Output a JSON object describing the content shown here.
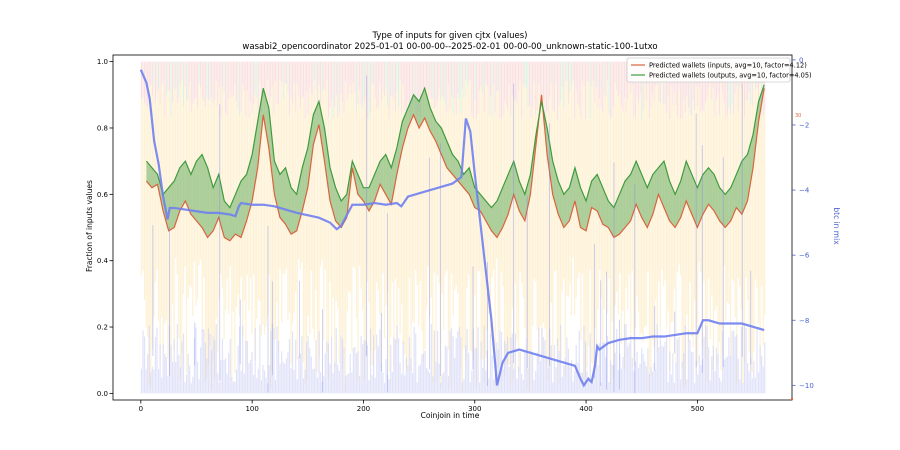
{
  "chart_data": {
    "type": "line",
    "title": "Type of inputs for given cjtx (values)",
    "subtitle": "wasabi2_opencoordinator 2025-01-01 00-00-00--2025-02-01 00-00-00_unknown-static-100-1utxo",
    "xlabel": "Coinjoin in time",
    "ylabel": "Fraction of inputs values",
    "y2label": "btc in mix",
    "xlim": [
      -25,
      585
    ],
    "ylim": [
      -0.02,
      1.02
    ],
    "y2lim": [
      -10.45,
      0.15
    ],
    "xticks": [
      0,
      100,
      200,
      300,
      400,
      500
    ],
    "yticks": [
      0.0,
      0.2,
      0.4,
      0.6,
      0.8,
      1.0
    ],
    "y2ticks": [
      0,
      -2,
      -4,
      -6,
      -8,
      -10
    ],
    "y2_extra_tick": {
      "value": -1.7,
      "label": "30"
    },
    "grid": false,
    "legend_position": "top-right",
    "background_stripes": {
      "x_start": 0,
      "x_end": 560,
      "top_colors": [
        "#f6c9c9",
        "#c9e6c9"
      ],
      "body_color": "#fde8b8",
      "low_color": "#c8ccf4"
    },
    "series": [
      {
        "name": "Predicted wallets (inputs, avg=10, factor=4.12)",
        "color": "#d9643f",
        "x": [
          5,
          10,
          15,
          20,
          25,
          30,
          35,
          40,
          45,
          50,
          55,
          60,
          65,
          70,
          75,
          80,
          85,
          90,
          95,
          100,
          105,
          110,
          115,
          120,
          125,
          130,
          135,
          140,
          145,
          150,
          155,
          160,
          165,
          170,
          175,
          180,
          185,
          190,
          195,
          200,
          205,
          210,
          215,
          220,
          225,
          230,
          235,
          240,
          245,
          250,
          255,
          260,
          265,
          270,
          275,
          280,
          285,
          290,
          295,
          300,
          305,
          310,
          315,
          320,
          325,
          330,
          335,
          340,
          345,
          350,
          355,
          360,
          365,
          370,
          375,
          380,
          385,
          390,
          395,
          400,
          405,
          410,
          415,
          420,
          425,
          430,
          435,
          440,
          445,
          450,
          455,
          460,
          465,
          470,
          475,
          480,
          485,
          490,
          495,
          500,
          505,
          510,
          515,
          520,
          525,
          530,
          535,
          540,
          545,
          550,
          555,
          560
        ],
        "y": [
          0.64,
          0.62,
          0.63,
          0.55,
          0.49,
          0.5,
          0.55,
          0.58,
          0.54,
          0.52,
          0.5,
          0.47,
          0.49,
          0.53,
          0.47,
          0.46,
          0.48,
          0.47,
          0.52,
          0.58,
          0.68,
          0.84,
          0.74,
          0.6,
          0.53,
          0.51,
          0.48,
          0.49,
          0.55,
          0.62,
          0.75,
          0.81,
          0.7,
          0.58,
          0.52,
          0.5,
          0.53,
          0.68,
          0.6,
          0.58,
          0.55,
          0.58,
          0.63,
          0.6,
          0.57,
          0.66,
          0.74,
          0.8,
          0.84,
          0.8,
          0.83,
          0.79,
          0.76,
          0.72,
          0.68,
          0.66,
          0.64,
          0.62,
          0.6,
          0.56,
          0.55,
          0.52,
          0.49,
          0.47,
          0.5,
          0.54,
          0.6,
          0.55,
          0.52,
          0.6,
          0.75,
          0.9,
          0.72,
          0.6,
          0.54,
          0.5,
          0.52,
          0.58,
          0.5,
          0.49,
          0.56,
          0.55,
          0.51,
          0.5,
          0.47,
          0.48,
          0.5,
          0.52,
          0.57,
          0.53,
          0.5,
          0.54,
          0.6,
          0.56,
          0.52,
          0.5,
          0.53,
          0.58,
          0.54,
          0.5,
          0.54,
          0.57,
          0.55,
          0.52,
          0.5,
          0.52,
          0.56,
          0.54,
          0.58,
          0.68,
          0.82,
          0.92
        ]
      },
      {
        "name": "Predicted wallets (outputs, avg=10, factor=4.05)",
        "color": "#3f9b3f",
        "x": [
          5,
          10,
          15,
          20,
          25,
          30,
          35,
          40,
          45,
          50,
          55,
          60,
          65,
          70,
          75,
          80,
          85,
          90,
          95,
          100,
          105,
          110,
          115,
          120,
          125,
          130,
          135,
          140,
          145,
          150,
          155,
          160,
          165,
          170,
          175,
          180,
          185,
          190,
          195,
          200,
          205,
          210,
          215,
          220,
          225,
          230,
          235,
          240,
          245,
          250,
          255,
          260,
          265,
          270,
          275,
          280,
          285,
          290,
          295,
          300,
          305,
          310,
          315,
          320,
          325,
          330,
          335,
          340,
          345,
          350,
          355,
          360,
          365,
          370,
          375,
          380,
          385,
          390,
          395,
          400,
          405,
          410,
          415,
          420,
          425,
          430,
          435,
          440,
          445,
          450,
          455,
          460,
          465,
          470,
          475,
          480,
          485,
          490,
          495,
          500,
          505,
          510,
          515,
          520,
          525,
          530,
          535,
          540,
          545,
          550,
          555,
          560
        ],
        "y": [
          0.7,
          0.68,
          0.66,
          0.6,
          0.62,
          0.64,
          0.68,
          0.7,
          0.66,
          0.7,
          0.72,
          0.68,
          0.62,
          0.66,
          0.58,
          0.56,
          0.6,
          0.64,
          0.66,
          0.72,
          0.82,
          0.92,
          0.86,
          0.7,
          0.66,
          0.68,
          0.62,
          0.6,
          0.68,
          0.74,
          0.84,
          0.88,
          0.8,
          0.68,
          0.62,
          0.58,
          0.6,
          0.7,
          0.66,
          0.62,
          0.62,
          0.66,
          0.7,
          0.72,
          0.68,
          0.74,
          0.82,
          0.86,
          0.9,
          0.88,
          0.92,
          0.86,
          0.82,
          0.8,
          0.76,
          0.72,
          0.7,
          0.66,
          0.68,
          0.62,
          0.6,
          0.58,
          0.56,
          0.58,
          0.62,
          0.66,
          0.7,
          0.64,
          0.6,
          0.66,
          0.78,
          0.88,
          0.8,
          0.7,
          0.64,
          0.6,
          0.62,
          0.68,
          0.62,
          0.58,
          0.64,
          0.66,
          0.62,
          0.58,
          0.56,
          0.6,
          0.64,
          0.66,
          0.7,
          0.66,
          0.62,
          0.66,
          0.68,
          0.7,
          0.64,
          0.6,
          0.64,
          0.7,
          0.66,
          0.62,
          0.66,
          0.68,
          0.66,
          0.62,
          0.6,
          0.62,
          0.66,
          0.7,
          0.72,
          0.78,
          0.88,
          0.93
        ]
      },
      {
        "name": "btc in mix",
        "axis": "right",
        "color": "#6f7ff0",
        "x": [
          0,
          5,
          8,
          12,
          16,
          20,
          24,
          26,
          30,
          40,
          50,
          60,
          70,
          80,
          85,
          88,
          90,
          100,
          110,
          120,
          140,
          160,
          170,
          176,
          180,
          190,
          200,
          210,
          220,
          230,
          234,
          240,
          250,
          260,
          270,
          280,
          288,
          292,
          296,
          300,
          305,
          310,
          315,
          320,
          325,
          330,
          340,
          350,
          360,
          370,
          380,
          390,
          395,
          398,
          402,
          405,
          408,
          410,
          412,
          420,
          430,
          440,
          450,
          460,
          470,
          480,
          490,
          500,
          505,
          510,
          520,
          530,
          540,
          550,
          560
        ],
        "y": [
          -0.3,
          -0.7,
          -1.2,
          -2.5,
          -3.2,
          -4.2,
          -4.9,
          -4.55,
          -4.55,
          -4.6,
          -4.65,
          -4.7,
          -4.7,
          -4.75,
          -4.8,
          -4.5,
          -4.4,
          -4.45,
          -4.45,
          -4.5,
          -4.7,
          -4.85,
          -5.0,
          -5.2,
          -5.1,
          -4.45,
          -4.45,
          -4.4,
          -4.45,
          -4.4,
          -4.5,
          -4.2,
          -4.1,
          -4.0,
          -3.9,
          -3.8,
          -3.6,
          -1.8,
          -2.2,
          -3.5,
          -5.0,
          -6.5,
          -8.0,
          -10.0,
          -9.3,
          -9.0,
          -8.9,
          -9.0,
          -9.1,
          -9.2,
          -9.3,
          -9.4,
          -9.8,
          -10.0,
          -9.8,
          -9.9,
          -9.4,
          -8.8,
          -8.9,
          -8.7,
          -8.6,
          -8.55,
          -8.55,
          -8.5,
          -8.5,
          -8.45,
          -8.4,
          -8.4,
          -8.0,
          -8.0,
          -8.1,
          -8.1,
          -8.1,
          -8.2,
          -8.3
        ]
      }
    ]
  }
}
